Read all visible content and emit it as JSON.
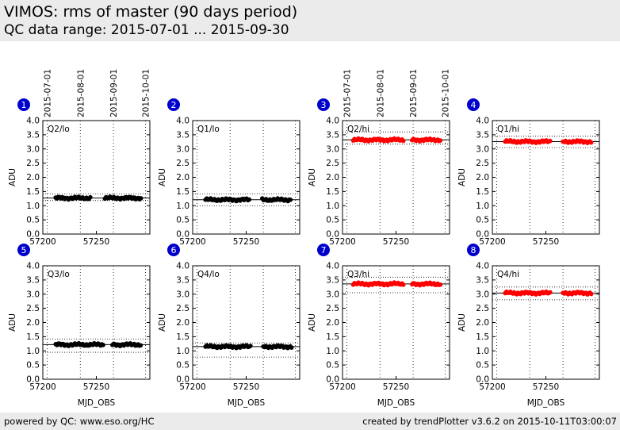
{
  "header": {
    "title": "VIMOS: rms of master (90 days period)",
    "subtitle": "QC data range: 2015-07-01 ... 2015-09-30"
  },
  "footer": {
    "left": "powered by QC: www.eso.org/HC",
    "right": "created by trendPlotter v3.6.2 on 2015-10-11T03:00:07"
  },
  "colors": {
    "black_series": "#000000",
    "red_series": "#ff0000",
    "badge": "#0000cc",
    "header_bg": "#ebebeb"
  },
  "chart_data": [
    {
      "panel": 1,
      "label": "Q2/lo",
      "type": "scatter",
      "color": "black",
      "xlabel": "",
      "ylabel": "ADU",
      "xlim": [
        57200,
        57300
      ],
      "ylim": [
        0,
        4
      ],
      "xticks": [
        "57200",
        "57250"
      ],
      "yticks": [
        "0.0",
        "0.5",
        "1.0",
        "1.5",
        "2.0",
        "2.5",
        "3.0",
        "3.5",
        "4.0"
      ],
      "date_ticks": [
        "2015-07-01",
        "2015-08-01",
        "2015-09-01",
        "2015-10-01"
      ],
      "mean": 1.27,
      "band": [
        1.18,
        1.42
      ],
      "segments": [
        [
          57212,
          57245
        ],
        [
          57258,
          57292
        ]
      ]
    },
    {
      "panel": 2,
      "label": "Q1/lo",
      "type": "scatter",
      "color": "black",
      "xlabel": "",
      "ylabel": "ADU",
      "xlim": [
        57200,
        57300
      ],
      "ylim": [
        0,
        4
      ],
      "xticks": [
        "57200",
        "57250"
      ],
      "yticks": [
        "0.0",
        "0.5",
        "1.0",
        "1.5",
        "2.0",
        "2.5",
        "3.0",
        "3.5",
        "4.0"
      ],
      "mean": 1.21,
      "band": [
        1.0,
        1.42
      ],
      "segments": [
        [
          57212,
          57253
        ],
        [
          57265,
          57292
        ]
      ]
    },
    {
      "panel": 3,
      "label": "Q2/hi",
      "type": "scatter",
      "color": "red",
      "xlabel": "",
      "ylabel": "ADU",
      "xlim": [
        57200,
        57300
      ],
      "ylim": [
        0,
        4
      ],
      "xticks": [
        "57200",
        "57250"
      ],
      "yticks": [
        "0.0",
        "0.5",
        "1.0",
        "1.5",
        "2.0",
        "2.5",
        "3.0",
        "3.5",
        "4.0"
      ],
      "date_ticks": [
        "2015-07-01",
        "2015-08-01",
        "2015-09-01",
        "2015-10-01"
      ],
      "mean": 3.32,
      "band": [
        3.17,
        3.6
      ],
      "segments": [
        [
          57210,
          57257
        ],
        [
          57265,
          57292
        ]
      ]
    },
    {
      "panel": 4,
      "label": "Q1/hi",
      "type": "scatter",
      "color": "red",
      "xlabel": "",
      "ylabel": "ADU",
      "xlim": [
        57200,
        57300
      ],
      "ylim": [
        0,
        4
      ],
      "xticks": [
        "57200",
        "57250"
      ],
      "yticks": [
        "0.0",
        "0.5",
        "1.0",
        "1.5",
        "2.0",
        "2.5",
        "3.0",
        "3.5",
        "4.0"
      ],
      "mean": 3.26,
      "band": [
        3.05,
        3.45
      ],
      "segments": [
        [
          57212,
          57254
        ],
        [
          57266,
          57293
        ]
      ]
    },
    {
      "panel": 5,
      "label": "Q3/lo",
      "type": "scatter",
      "color": "black",
      "xlabel": "MJD_OBS",
      "ylabel": "ADU",
      "xlim": [
        57200,
        57300
      ],
      "ylim": [
        0,
        4
      ],
      "xticks": [
        "57200",
        "57250"
      ],
      "yticks": [
        "0.0",
        "0.5",
        "1.0",
        "1.5",
        "2.0",
        "2.5",
        "3.0",
        "3.5",
        "4.0"
      ],
      "mean": 1.22,
      "band": [
        0.95,
        1.42
      ],
      "segments": [
        [
          57212,
          57257
        ],
        [
          57265,
          57292
        ]
      ]
    },
    {
      "panel": 6,
      "label": "Q4/lo",
      "type": "scatter",
      "color": "black",
      "xlabel": "MJD_OBS",
      "ylabel": "ADU",
      "xlim": [
        57200,
        57300
      ],
      "ylim": [
        0,
        4
      ],
      "xticks": [
        "57200",
        "57250"
      ],
      "yticks": [
        "0.0",
        "0.5",
        "1.0",
        "1.5",
        "2.0",
        "2.5",
        "3.0",
        "3.5",
        "4.0"
      ],
      "mean": 1.15,
      "band": [
        0.78,
        1.28
      ],
      "segments": [
        [
          57212,
          57254
        ],
        [
          57266,
          57293
        ]
      ]
    },
    {
      "panel": 7,
      "label": "Q3/hi",
      "type": "scatter",
      "color": "red",
      "xlabel": "MJD_OBS",
      "ylabel": "ADU",
      "xlim": [
        57200,
        57300
      ],
      "ylim": [
        0,
        4
      ],
      "xticks": [
        "57200",
        "57250"
      ],
      "yticks": [
        "0.0",
        "0.5",
        "1.0",
        "1.5",
        "2.0",
        "2.5",
        "3.0",
        "3.5",
        "4.0"
      ],
      "mean": 3.36,
      "band": [
        3.05,
        3.6
      ],
      "segments": [
        [
          57210,
          57257
        ],
        [
          57265,
          57292
        ]
      ]
    },
    {
      "panel": 8,
      "label": "Q4/hi",
      "type": "scatter",
      "color": "red",
      "xlabel": "MJD_OBS",
      "ylabel": "ADU",
      "xlim": [
        57200,
        57300
      ],
      "ylim": [
        0,
        4
      ],
      "xticks": [
        "57200",
        "57250"
      ],
      "yticks": [
        "0.0",
        "0.5",
        "1.0",
        "1.5",
        "2.0",
        "2.5",
        "3.0",
        "3.5",
        "4.0"
      ],
      "mean": 3.04,
      "band": [
        2.8,
        3.25
      ],
      "segments": [
        [
          57212,
          57254
        ],
        [
          57266,
          57293
        ]
      ]
    }
  ]
}
